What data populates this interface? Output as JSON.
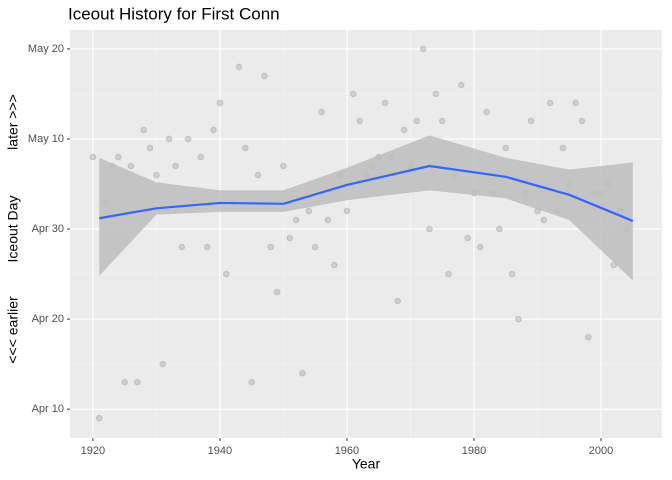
{
  "chart_data": {
    "type": "scatter",
    "title": "Iceout History for First Conn",
    "x_label": "Year",
    "y_label": "Iceout Day",
    "annotations": [
      "later >>>",
      "<<< earlier"
    ],
    "x": [
      1920,
      1921,
      1922,
      1923,
      1924,
      1925,
      1926,
      1927,
      1928,
      1929,
      1930,
      1931,
      1932,
      1933,
      1934,
      1935,
      1936,
      1937,
      1938,
      1939,
      1940,
      1941,
      1942,
      1943,
      1944,
      1945,
      1946,
      1947,
      1948,
      1949,
      1950,
      1951,
      1952,
      1953,
      1954,
      1955,
      1956,
      1957,
      1958,
      1959,
      1960,
      1961,
      1962,
      1963,
      1964,
      1965,
      1966,
      1967,
      1968,
      1969,
      1970,
      1971,
      1972,
      1973,
      1974,
      1975,
      1976,
      1977,
      1978,
      1979,
      1980,
      1981,
      1982,
      1983,
      1984,
      1985,
      1986,
      1987,
      1988,
      1989,
      1990,
      1991,
      1992,
      1993,
      1994,
      1995,
      1996,
      1997,
      1998,
      1999,
      2000,
      2001,
      2002,
      2003,
      2004
    ],
    "values": [
      128,
      99,
      123,
      127,
      128,
      103,
      127,
      103,
      131,
      129,
      126,
      105,
      130,
      127,
      118,
      130,
      123,
      128,
      118,
      131,
      134,
      115,
      123,
      138,
      129,
      103,
      126,
      137,
      118,
      113,
      127,
      119,
      121,
      104,
      122,
      118,
      133,
      121,
      116,
      126,
      122,
      135,
      132,
      126,
      127,
      128,
      134,
      128,
      112,
      131,
      127,
      132,
      140,
      120,
      135,
      132,
      115,
      126,
      136,
      119,
      124,
      118,
      133,
      124,
      120,
      129,
      115,
      110,
      124,
      132,
      122,
      121,
      134,
      122,
      129,
      125,
      134,
      132,
      108,
      124,
      124,
      125,
      116,
      122,
      120
    ],
    "color": "#999999",
    "smooth": {
      "x": [
        1921,
        1930,
        1940,
        1950,
        1960,
        1973,
        1985,
        1995,
        2005
      ],
      "values": [
        121.2,
        122.3,
        122.9,
        122.8,
        124.9,
        127.0,
        125.8,
        123.8,
        120.9
      ],
      "lower": [
        114.8,
        121.6,
        121.9,
        121.9,
        123.2,
        124.3,
        123.4,
        121.0,
        114.3
      ],
      "upper": [
        127.9,
        125.2,
        124.3,
        124.3,
        126.8,
        130.4,
        127.9,
        126.6,
        127.4
      ],
      "color": "#3366ff",
      "band_color": "#bdbdbd"
    },
    "xlim": [
      1916.4,
      2009.6
    ],
    "ylim": [
      96.8,
      142.1
    ],
    "xticks": [
      1920,
      1940,
      1960,
      1980,
      2000
    ],
    "yticks": [
      {
        "value": 100,
        "label": "Apr 10"
      },
      {
        "value": 110,
        "label": "Apr 20"
      },
      {
        "value": 120,
        "label": "Apr 30"
      },
      {
        "value": 130,
        "label": "May 10"
      },
      {
        "value": 140,
        "label": "May 20"
      }
    ],
    "grid": true
  }
}
